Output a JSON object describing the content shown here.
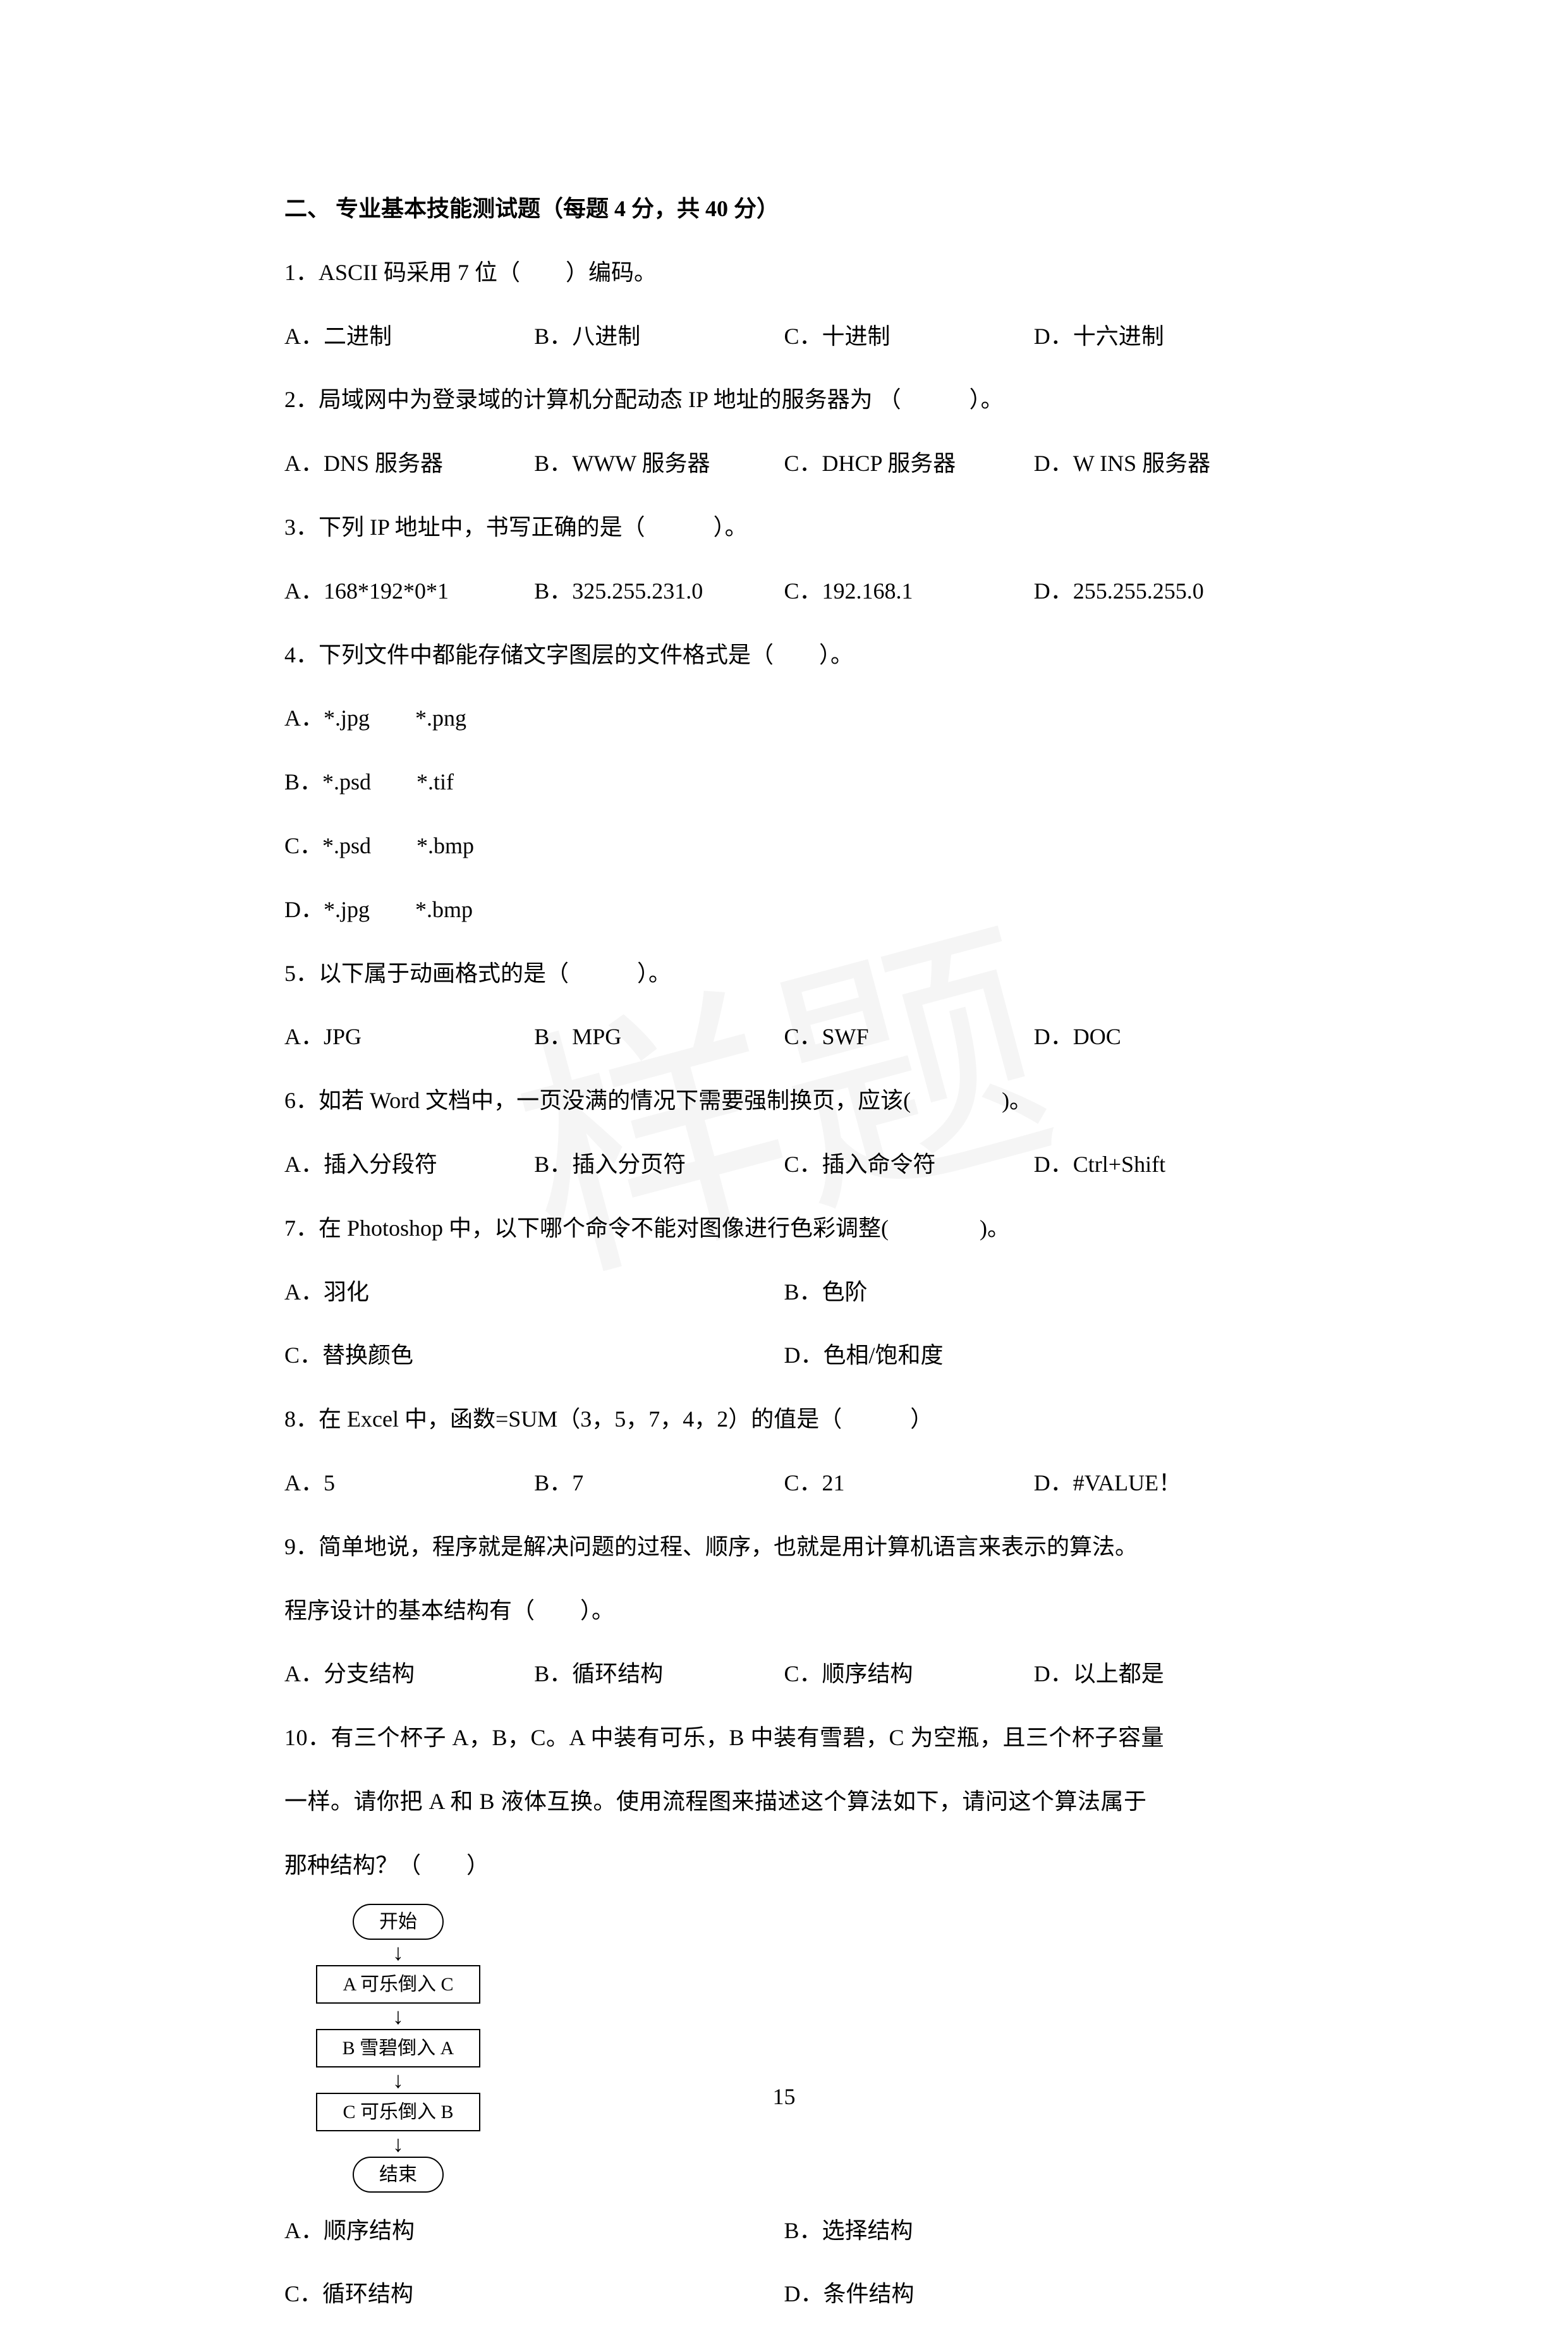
{
  "watermark_text": "样题",
  "section_header": "二、 专业基本技能测试题（每题 4 分，共 40 分）",
  "page_number": "15",
  "q1": {
    "text": "1．ASCII 码采用 7 位（　　）编码。",
    "a": "A．二进制",
    "b": "B．八进制",
    "c": "C．十进制",
    "d": "D．十六进制"
  },
  "q2": {
    "text": "2．局域网中为登录域的计算机分配动态 IP 地址的服务器为 （　　　）。",
    "a": "A．DNS 服务器",
    "b": "B．WWW 服务器",
    "c": "C．DHCP 服务器",
    "d": "D．W INS 服务器"
  },
  "q3": {
    "text": "3．下列 IP 地址中，书写正确的是（　　　）。",
    "a": "A．168*192*0*1",
    "b": "B．325.255.231.0",
    "c": "C．192.168.1",
    "d": "D．255.255.255.0"
  },
  "q4": {
    "text": "4．下列文件中都能存储文字图层的文件格式是（　　）。",
    "a": "A．*.jpg　　*.png",
    "b": "B．*.psd　　*.tif",
    "c": "C．*.psd　　*.bmp",
    "d": "D．*.jpg　　*.bmp"
  },
  "q5": {
    "text": "5．以下属于动画格式的是（　　　）。",
    "a": "A．JPG",
    "b": "B．MPG",
    "c": "C．SWF",
    "d": "D．DOC"
  },
  "q6": {
    "text": "6．如若 Word 文档中，一页没满的情况下需要强制换页，应该(　　　　)。",
    "a": "A．插入分段符",
    "b": "B．插入分页符",
    "c": "C．插入命令符",
    "d": "D．Ctrl+Shift"
  },
  "q7": {
    "text": "7．在 Photoshop 中，以下哪个命令不能对图像进行色彩调整(　　　　)。",
    "a": "A．羽化",
    "b": "B．色阶",
    "c": "C．替换颜色",
    "d": "D．色相/饱和度"
  },
  "q8": {
    "text": "8．在 Excel 中，函数=SUM（3，5，7，4，2）的值是（　　　）",
    "a": "A．5",
    "b": "B．7",
    "c": "C．21",
    "d": "D．#VALUE！"
  },
  "q9": {
    "text1": "9．简单地说，程序就是解决问题的过程、顺序，也就是用计算机语言来表示的算法。",
    "text2": "程序设计的基本结构有（　　）。",
    "a": "A．分支结构",
    "b": "B．循环结构",
    "c": "C．顺序结构",
    "d": "D．以上都是"
  },
  "q10": {
    "text1": "10．有三个杯子 A，B，C。A 中装有可乐，B 中装有雪碧，C 为空瓶，且三个杯子容量",
    "text2": "一样。请你把 A 和 B 液体互换。使用流程图来描述这个算法如下，请问这个算法属于",
    "text3": "那种结构？（　　）",
    "a": "A．顺序结构",
    "b": "B．选择结构",
    "c": "C．循环结构",
    "d": "D．条件结构"
  },
  "flowchart": {
    "start": "开始",
    "step1": "A 可乐倒入 C",
    "step2": "B 雪碧倒入 A",
    "step3": "C 可乐倒入 B",
    "end": "结束"
  }
}
